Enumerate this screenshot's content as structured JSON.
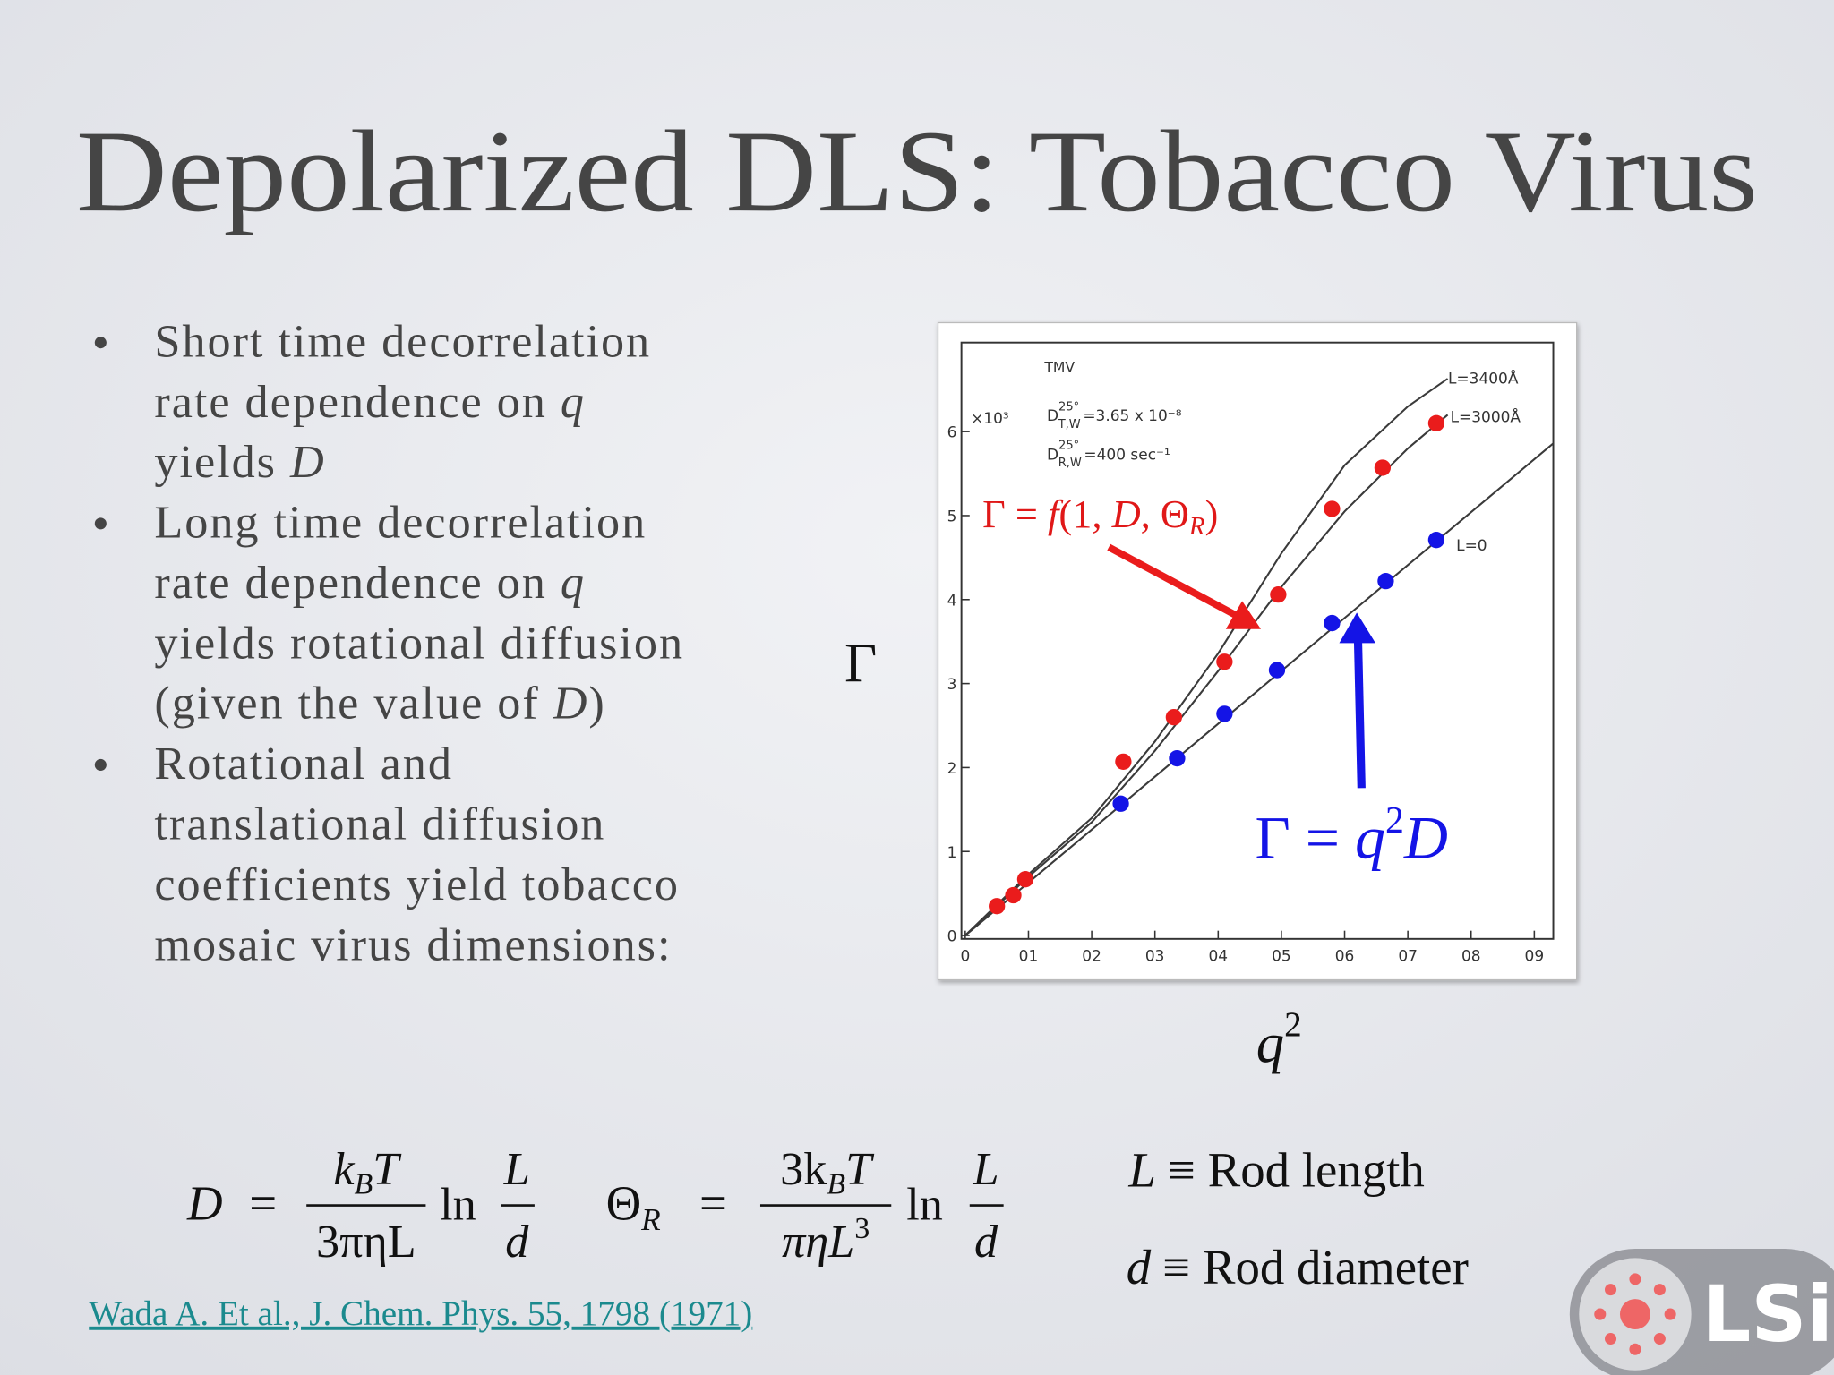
{
  "slide": {
    "title": "Depolarized DLS: Tobacco Virus",
    "bullets": [
      [
        [
          "Short time decorrelation"
        ],
        [
          "rate dependence on ",
          "q"
        ],
        [
          "yields ",
          "D"
        ]
      ],
      [
        [
          "Long time decorrelation"
        ],
        [
          "rate dependence on ",
          "q"
        ],
        [
          "yields rotational diffusion"
        ],
        [
          "(given the value of ",
          "D",
          ")"
        ]
      ],
      [
        [
          "Rotational and"
        ],
        [
          "translational diffusion"
        ],
        [
          "coefficients yield tobacco"
        ],
        [
          "mosaic virus dimensions:"
        ]
      ]
    ],
    "formula_d": {
      "lhs": "D",
      "eq": "=",
      "num": [
        "k",
        "B",
        "T"
      ],
      "den": "3πηL",
      "ln": "ln",
      "top": "L",
      "bottom": "d"
    },
    "formula_theta": {
      "lhs": [
        "Θ",
        "R"
      ],
      "eq": "=",
      "num": [
        "3k",
        "B",
        "T"
      ],
      "den": [
        "πηL",
        "3"
      ],
      "ln": "ln",
      "top": "L",
      "bottom": "d"
    },
    "definitions": [
      {
        "symbol": "L",
        "text": "≡ Rod length"
      },
      {
        "symbol": "d",
        "text": "≡ Rod diameter"
      }
    ],
    "citation": "Wada A. Et al., J. Chem. Phys. 55, 1798 (1971)",
    "logo": "LSi"
  },
  "chart_data": {
    "type": "scatter",
    "y_label": "Γ",
    "x_label": [
      "q",
      "2"
    ],
    "xlim": [
      -0.006,
      0.93
    ],
    "ylim": [
      -0.04,
      7.06
    ],
    "xticks": [
      0,
      {
        "value": 0.1,
        "label": "01"
      },
      {
        "value": 0.2,
        "label": "02"
      },
      {
        "value": 0.3,
        "label": "03"
      },
      {
        "value": 0.4,
        "label": "04"
      },
      {
        "value": 0.5,
        "label": "05"
      },
      {
        "value": 0.6,
        "label": "06"
      },
      {
        "value": 0.7,
        "label": "07"
      },
      {
        "value": 0.8,
        "label": "08"
      },
      {
        "value": 0.9,
        "label": "09"
      }
    ],
    "yticks": [
      0,
      1,
      2,
      3,
      4,
      5,
      6
    ],
    "y_multiplier": "×10³",
    "sample": "TMV",
    "constants": [
      {
        "symbol": "D",
        "sup": "25°",
        "sub": "T,W",
        "text": "=3.65 x 10⁻⁸"
      },
      {
        "symbol": "D",
        "sup": "25°",
        "sub": "R,W",
        "text": "=400 sec⁻¹"
      }
    ],
    "red_label": [
      "Γ = ",
      "f",
      "(1, ",
      "D",
      ", Θ",
      "R",
      ")"
    ],
    "blue_label": [
      "Γ = ",
      "q",
      "2",
      "D"
    ],
    "series": [
      {
        "type": "line",
        "name": "L=3400Å",
        "color": "#3a3a3a",
        "x": [
          0,
          0.1,
          0.2,
          0.3,
          0.4,
          0.5,
          0.6,
          0.7,
          0.763
        ],
        "values": [
          0,
          0.73,
          1.4,
          2.31,
          3.36,
          4.55,
          5.6,
          6.3,
          6.63
        ]
      },
      {
        "type": "line",
        "name": "L=3000Å",
        "color": "#3a3a3a",
        "x": [
          0,
          0.1,
          0.2,
          0.3,
          0.4,
          0.5,
          0.6,
          0.7,
          0.763
        ],
        "values": [
          0,
          0.7,
          1.35,
          2.2,
          3.15,
          4.15,
          5.05,
          5.8,
          6.2
        ]
      },
      {
        "type": "line",
        "name": "L=0",
        "color": "#3a3a3a",
        "x": [
          0,
          0.93
        ],
        "values": [
          0,
          5.86
        ]
      },
      {
        "type": "scatter",
        "color": "#ea1c1c",
        "x": [
          0.05,
          0.076,
          0.095,
          0.25,
          0.33,
          0.41,
          0.495,
          0.58,
          0.66,
          0.745
        ],
        "values": [
          0.35,
          0.48,
          0.67,
          2.07,
          2.6,
          3.26,
          4.06,
          5.08,
          5.57,
          6.1
        ]
      },
      {
        "type": "scatter",
        "color": "#1414e6",
        "x": [
          0.246,
          0.335,
          0.41,
          0.493,
          0.58,
          0.665,
          0.745
        ],
        "values": [
          1.57,
          2.11,
          2.64,
          3.16,
          3.72,
          4.22,
          4.71
        ]
      }
    ]
  }
}
